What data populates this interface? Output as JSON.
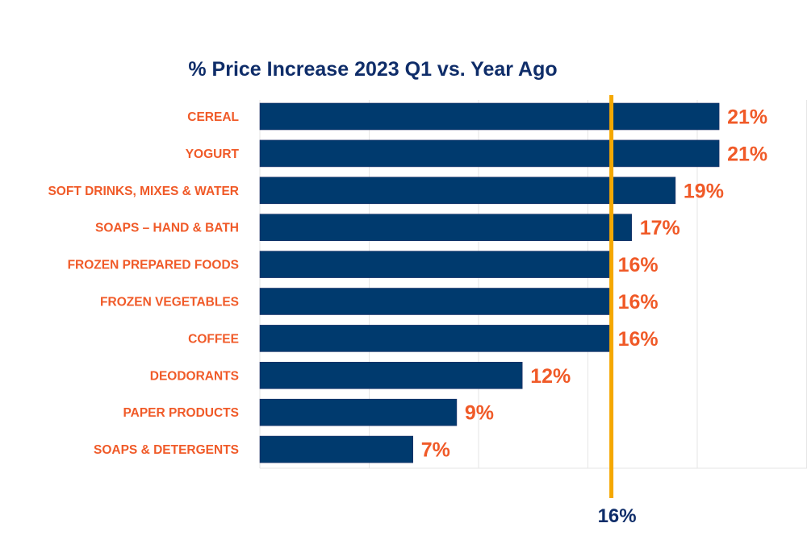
{
  "chart_data": {
    "type": "bar",
    "orientation": "horizontal",
    "title": "% Price Increase 2023 Q1 vs. Year Ago",
    "xlabel": "",
    "ylabel": "",
    "categories": [
      "CEREAL",
      "YOGURT",
      "SOFT DRINKS, MIXES & WATER",
      "SOAPS – HAND &  BATH",
      "FROZEN PREPARED FOODS",
      "FROZEN VEGETABLES",
      "COFFEE",
      "DEODORANTS",
      "PAPER PRODUCTS",
      "SOAPS & DETERGENTS"
    ],
    "values": [
      21,
      21,
      19,
      17,
      16,
      16,
      16,
      12,
      9,
      7
    ],
    "data_labels": [
      "21%",
      "21%",
      "19%",
      "17%",
      "16%",
      "16%",
      "16%",
      "12%",
      "9%",
      "7%"
    ],
    "xlim": [
      0,
      25
    ],
    "gridlines": [
      0,
      5,
      10,
      15,
      20,
      25
    ],
    "grid": true,
    "legend": "none",
    "reference_line": {
      "value": 16,
      "label": "16%"
    },
    "colors": {
      "bar": "#003a6e",
      "category_label": "#f05a28",
      "data_label": "#f05a28",
      "title": "#0f2d69",
      "reference_line": "#f5a800",
      "reference_label": "#0f2d69",
      "grid": "#e6e6e6"
    }
  }
}
